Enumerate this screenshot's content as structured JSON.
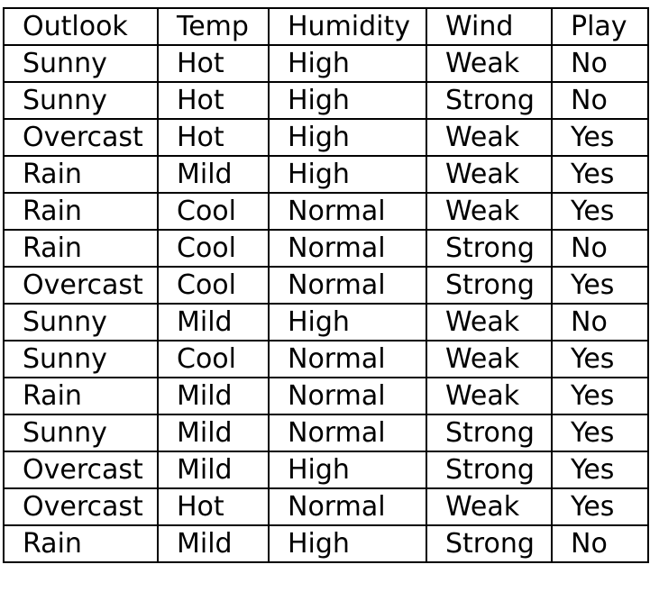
{
  "table": {
    "headers": [
      "Outlook",
      "Temp",
      "Humidity",
      "Wind",
      "Play"
    ],
    "rows": [
      [
        "Sunny",
        "Hot",
        "High",
        "Weak",
        "No"
      ],
      [
        "Sunny",
        "Hot",
        "High",
        "Strong",
        "No"
      ],
      [
        "Overcast",
        "Hot",
        "High",
        "Weak",
        "Yes"
      ],
      [
        "Rain",
        "Mild",
        "High",
        "Weak",
        "Yes"
      ],
      [
        "Rain",
        "Cool",
        "Normal",
        "Weak",
        "Yes"
      ],
      [
        "Rain",
        "Cool",
        "Normal",
        "Strong",
        "No"
      ],
      [
        "Overcast",
        "Cool",
        "Normal",
        "Strong",
        "Yes"
      ],
      [
        "Sunny",
        "Mild",
        "High",
        "Weak",
        "No"
      ],
      [
        "Sunny",
        "Cool",
        "Normal",
        "Weak",
        "Yes"
      ],
      [
        "Rain",
        "Mild",
        "Normal",
        "Weak",
        "Yes"
      ],
      [
        "Sunny",
        "Mild",
        "Normal",
        "Strong",
        "Yes"
      ],
      [
        "Overcast",
        "Mild",
        "High",
        "Strong",
        "Yes"
      ],
      [
        "Overcast",
        "Hot",
        "Normal",
        "Weak",
        "Yes"
      ],
      [
        "Rain",
        "Mild",
        "High",
        "Strong",
        "No"
      ]
    ]
  }
}
